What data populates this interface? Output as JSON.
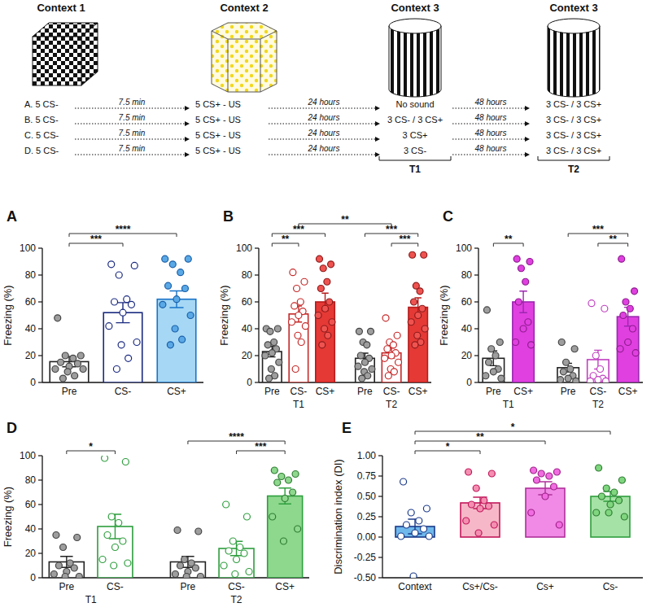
{
  "diagram": {
    "contexts": [
      "Context 1",
      "Context 2",
      "Context 3",
      "Context 3"
    ],
    "columns": [
      [
        "A. 5 CS-",
        "B. 5 CS-",
        "C. 5 CS-",
        "D. 5 CS-"
      ],
      [
        "5 CS+ - US",
        "5 CS+ - US",
        "5 CS+ - US",
        "5 CS+ - US"
      ],
      [
        "No sound",
        "3 CS- / 3 CS+",
        "3 CS+",
        "3 CS-"
      ],
      [
        "3 CS- / 3 CS+",
        "3 CS- / 3 CS+",
        "3 CS- / 3 CS+",
        "3 CS- / 3 CS+"
      ]
    ],
    "intervals": [
      "7.5 min",
      "24 hours",
      "48 hours"
    ],
    "phases": [
      {
        "label": "T1",
        "column": 2
      },
      {
        "label": "T2",
        "column": 3
      }
    ]
  },
  "chart_data": [
    {
      "type": "bar",
      "label": "A",
      "y_label": "Freezing (%)",
      "categories": [
        "Pre",
        "CS-",
        "CS+"
      ],
      "values": [
        15.5,
        52,
        62
      ],
      "errors": [
        3.8,
        7.5,
        6.2
      ],
      "colors": [
        "#ffffff",
        "#ffffff",
        "#a6d8f5"
      ],
      "points": [
        [
          48,
          20,
          20,
          18,
          15,
          14,
          12,
          10,
          10,
          8,
          5,
          3
        ],
        [
          88,
          87,
          80,
          62,
          60,
          58,
          52,
          42,
          30,
          28,
          18,
          10
        ],
        [
          92,
          92,
          88,
          82,
          72,
          70,
          62,
          58,
          50,
          40,
          32,
          28
        ]
      ],
      "ylim": [
        0,
        100
      ],
      "yticks": [
        0,
        20,
        40,
        60,
        80,
        100
      ],
      "comparisons": [
        {
          "pair": [
            0,
            1
          ],
          "label": "***"
        },
        {
          "pair": [
            0,
            2
          ],
          "label": "****"
        }
      ]
    },
    {
      "type": "bar",
      "label": "B",
      "y_label": "Freezing (%)",
      "categories": [
        "Pre",
        "CS-",
        "CS+",
        "Pre",
        "CS-",
        "CS+"
      ],
      "values": [
        23,
        51,
        60,
        18,
        22,
        56
      ],
      "errors": [
        4,
        6,
        6.5,
        3.8,
        3.8,
        7
      ],
      "colors": [
        "#ffffff",
        "#ffffff",
        "#e53935",
        "#ffffff",
        "#ffffff",
        "#e53935"
      ],
      "points": [
        [
          40,
          40,
          38,
          30,
          28,
          25,
          22,
          20,
          15,
          10,
          5,
          3
        ],
        [
          82,
          75,
          70,
          60,
          57,
          53,
          50,
          45,
          42,
          35,
          30,
          10
        ],
        [
          92,
          88,
          85,
          75,
          70,
          60,
          55,
          50,
          45,
          40,
          35,
          28
        ],
        [
          38,
          38,
          30,
          28,
          20,
          18,
          15,
          12,
          10,
          8,
          5,
          3
        ],
        [
          48,
          35,
          30,
          28,
          25,
          22,
          20,
          18,
          15,
          10,
          8,
          5
        ],
        [
          95,
          95,
          72,
          68,
          60,
          55,
          50,
          45,
          40,
          35,
          30,
          28
        ]
      ],
      "ylim": [
        0,
        100
      ],
      "yticks": [
        0,
        20,
        40,
        60,
        80,
        100
      ],
      "groups": [
        {
          "label": "T1",
          "span": [
            0,
            2
          ]
        },
        {
          "label": "T2",
          "span": [
            3,
            5
          ]
        }
      ],
      "comparisons": [
        {
          "pair": [
            0,
            1
          ],
          "label": "**"
        },
        {
          "pair": [
            0,
            2
          ],
          "label": "***"
        },
        {
          "pair": [
            1,
            4
          ],
          "label": "**"
        },
        {
          "pair": [
            3,
            5
          ],
          "label": "***"
        },
        {
          "pair": [
            4,
            5
          ],
          "label": "***"
        }
      ]
    },
    {
      "type": "bar",
      "label": "C",
      "y_label": "Freezing (%)",
      "categories": [
        "Pre",
        "CS+",
        "Pre",
        "CS-",
        "CS+"
      ],
      "values": [
        18,
        60,
        11,
        17,
        49
      ],
      "errors": [
        5.5,
        8,
        3.2,
        7,
        7
      ],
      "colors": [
        "#ffffff",
        "#e040e0",
        "#ffffff",
        "#ffffff",
        "#e040e0"
      ],
      "points": [
        [
          54,
          30,
          25,
          20,
          15,
          10,
          8,
          5,
          3
        ],
        [
          92,
          90,
          85,
          75,
          60,
          45,
          40,
          30,
          28
        ],
        [
          30,
          25,
          15,
          10,
          8,
          5,
          3,
          2,
          1
        ],
        [
          59,
          55,
          20,
          10,
          5,
          3,
          2,
          1,
          1
        ],
        [
          92,
          68,
          60,
          55,
          50,
          40,
          30,
          25,
          22
        ]
      ],
      "ylim": [
        0,
        100
      ],
      "yticks": [
        0,
        20,
        40,
        60,
        80,
        100
      ],
      "groups": [
        {
          "label": "T1",
          "span": [
            0,
            1
          ]
        },
        {
          "label": "T2",
          "span": [
            2,
            4
          ]
        }
      ],
      "comparisons": [
        {
          "pair": [
            0,
            1
          ],
          "label": "**"
        },
        {
          "pair": [
            2,
            4
          ],
          "label": "***"
        },
        {
          "pair": [
            3,
            4
          ],
          "label": "**"
        }
      ]
    },
    {
      "type": "bar",
      "label": "D",
      "y_label": "Freezing (%)",
      "categories": [
        "Pre",
        "CS-",
        "Pre",
        "CS-",
        "CS+"
      ],
      "values": [
        13,
        42,
        13,
        24,
        67
      ],
      "errors": [
        4.5,
        10,
        4.5,
        5.8,
        6.5
      ],
      "colors": [
        "#ffffff",
        "#ffffff",
        "#ffffff",
        "#ffffff",
        "#8ed88e"
      ],
      "points": [
        [
          35,
          33,
          25,
          12,
          10,
          8,
          5,
          3,
          1,
          1
        ],
        [
          98,
          95,
          50,
          45,
          35,
          30,
          25,
          15,
          12,
          10
        ],
        [
          39,
          38,
          15,
          12,
          10,
          8,
          5,
          3,
          1,
          1
        ],
        [
          60,
          50,
          30,
          25,
          22,
          20,
          15,
          10,
          5,
          3
        ],
        [
          88,
          85,
          83,
          80,
          78,
          70,
          65,
          50,
          40,
          30
        ]
      ],
      "ylim": [
        0,
        100
      ],
      "yticks": [
        0,
        20,
        40,
        60,
        80,
        100
      ],
      "groups": [
        {
          "label": "T1",
          "span": [
            0,
            1
          ]
        },
        {
          "label": "T2",
          "span": [
            2,
            4
          ]
        }
      ],
      "comparisons": [
        {
          "pair": [
            0,
            1
          ],
          "label": "*"
        },
        {
          "pair": [
            2,
            4
          ],
          "label": "****"
        },
        {
          "pair": [
            3,
            4
          ],
          "label": "***"
        }
      ]
    },
    {
      "type": "bar",
      "label": "E",
      "y_label": "Discrimination index (DI)",
      "categories": [
        "Context",
        "Cs+/Cs-",
        "Cs+",
        "Cs-"
      ],
      "values": [
        0.13,
        0.42,
        0.6,
        0.5
      ],
      "errors": [
        0.09,
        0.07,
        0.08,
        0.06
      ],
      "colors": [
        "#6fb8ec",
        "#f6b8c8",
        "#f08ae6",
        "#a5e2a5"
      ],
      "points": [
        [
          0.68,
          0.35,
          0.3,
          0.2,
          0.15,
          0.1,
          0.05,
          0.01,
          0.01,
          -0.48
        ],
        [
          0.8,
          0.78,
          0.6,
          0.45,
          0.4,
          0.38,
          0.35,
          0.2,
          0.15,
          0.05
        ],
        [
          0.82,
          0.8,
          0.78,
          0.75,
          0.7,
          0.62,
          0.5,
          0.3,
          0.15
        ],
        [
          0.85,
          0.7,
          0.6,
          0.55,
          0.5,
          0.45,
          0.4,
          0.3,
          0.25,
          0.3
        ]
      ],
      "ylim": [
        -0.5,
        1
      ],
      "yticks": [
        {
          "value": -0.5,
          "label": "-0.50"
        },
        {
          "value": -0.25,
          "label": "-0.25"
        },
        {
          "value": 0,
          "label": "0.00"
        },
        {
          "value": 0.25,
          "label": "0.25"
        },
        {
          "value": 0.5,
          "label": "0.50"
        },
        {
          "value": 0.75,
          "label": "0.75"
        },
        {
          "value": 1,
          "label": "1.00"
        }
      ],
      "comparisons": [
        {
          "pair": [
            0,
            1
          ],
          "label": "*"
        },
        {
          "pair": [
            0,
            2
          ],
          "label": "**"
        },
        {
          "pair": [
            0,
            3
          ],
          "label": "*"
        }
      ]
    }
  ]
}
